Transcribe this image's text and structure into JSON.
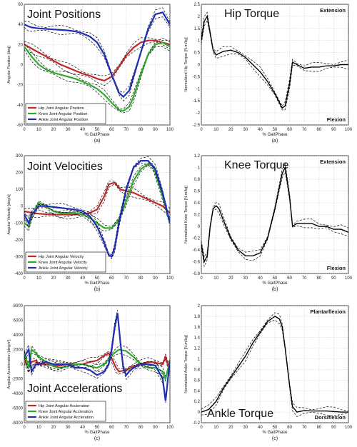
{
  "chart_data": [
    {
      "id": "pos",
      "type": "line",
      "title": "Joint Positions",
      "xlabel": "% GaitPhase",
      "ylabel": "Angular Position [deg]",
      "sublabel": "(a)",
      "xlim": [
        0,
        100
      ],
      "ylim": [
        -60,
        60
      ],
      "xticks": [
        0,
        10,
        20,
        30,
        40,
        50,
        60,
        70,
        80,
        90,
        100
      ],
      "yticks": [
        60,
        40,
        20,
        0,
        -20,
        -40,
        -60
      ],
      "grid": true,
      "legend": "bottom-left",
      "series": [
        {
          "name": "Hip Joint Angular Position",
          "color": "#c0282a",
          "x": [
            0,
            5,
            10,
            15,
            20,
            25,
            30,
            35,
            40,
            45,
            50,
            55,
            60,
            65,
            70,
            75,
            80,
            85,
            90,
            95,
            100
          ],
          "y": [
            20,
            16,
            12,
            8,
            4,
            0,
            -3,
            -6,
            -9,
            -11,
            -14,
            -16,
            -12,
            -2,
            9,
            17,
            22,
            24,
            24,
            22,
            20
          ]
        },
        {
          "name": "Knee Joint Angular Position",
          "color": "#2faa2f",
          "x": [
            0,
            5,
            10,
            15,
            20,
            25,
            30,
            35,
            40,
            45,
            50,
            55,
            60,
            65,
            68,
            72,
            75,
            80,
            85,
            90,
            95,
            100
          ],
          "y": [
            18,
            8,
            0,
            -5,
            -8,
            -10,
            -12,
            -14,
            -17,
            -20,
            -24,
            -30,
            -38,
            -45,
            -46,
            -42,
            -32,
            -10,
            10,
            20,
            22,
            18
          ]
        },
        {
          "name": "Ankle Joint Angular Position",
          "color": "#1f2fb4",
          "x": [
            0,
            3,
            5,
            10,
            15,
            20,
            25,
            30,
            35,
            40,
            45,
            50,
            55,
            60,
            65,
            68,
            72,
            75,
            80,
            85,
            90,
            95,
            100
          ],
          "y": [
            40,
            38,
            37,
            36,
            35.5,
            35,
            34.5,
            34,
            33,
            31,
            28,
            22,
            10,
            -10,
            -28,
            -32,
            -26,
            -12,
            12,
            35,
            50,
            52,
            40
          ]
        }
      ]
    },
    {
      "id": "hip",
      "type": "line",
      "title": "Hip Torque",
      "xlabel": "% GaitPhase",
      "ylabel": "Normalized Hip Torque [N.m/kg]",
      "sublabel": "(a)",
      "top_tag": "Extension",
      "bottom_tag": "Flexion",
      "xlim": [
        0,
        100
      ],
      "ylim": [
        -2.5,
        2.5
      ],
      "xticks": [
        0,
        10,
        20,
        30,
        40,
        50,
        60,
        70,
        80,
        90,
        100
      ],
      "yticks": [
        2.5,
        2,
        1.5,
        1,
        0.5,
        0,
        -0.5,
        -1,
        -1.5,
        -2,
        -2.5
      ],
      "grid": true,
      "series": [
        {
          "name": "",
          "color": "#000000",
          "x": [
            0,
            2,
            4,
            6,
            8,
            10,
            15,
            20,
            25,
            30,
            35,
            40,
            45,
            50,
            55,
            57,
            60,
            62,
            65,
            70,
            75,
            80,
            85,
            90,
            95,
            100
          ],
          "y": [
            1.0,
            1.8,
            2.0,
            1.3,
            0.6,
            0.4,
            0.55,
            0.6,
            0.5,
            0.3,
            0.0,
            -0.3,
            -0.7,
            -1.2,
            -1.8,
            -1.7,
            -0.8,
            0.1,
            0.0,
            -0.15,
            -0.1,
            -0.1,
            -0.05,
            -0.05,
            0.0,
            0.0
          ]
        }
      ]
    },
    {
      "id": "vel",
      "type": "line",
      "title": "Joint Velocities",
      "xlabel": "% GaitPhase",
      "ylabel": "Angular Velocity [deg/s]",
      "sublabel": "(b)",
      "xlim": [
        0,
        100
      ],
      "ylim": [
        -400,
        300
      ],
      "xticks": [
        0,
        10,
        20,
        30,
        40,
        50,
        60,
        70,
        80,
        90,
        100
      ],
      "yticks": [
        300,
        200,
        100,
        0,
        -100,
        -200,
        -300,
        -400
      ],
      "grid": true,
      "legend": "bottom-left",
      "series": [
        {
          "name": "Hip Joint Angular Velocity",
          "color": "#c0282a",
          "x": [
            0,
            5,
            10,
            15,
            20,
            25,
            30,
            35,
            40,
            45,
            50,
            55,
            58,
            62,
            66,
            70,
            75,
            80,
            85,
            90,
            95,
            100
          ],
          "y": [
            -30,
            -40,
            -45,
            -48,
            -50,
            -50,
            -50,
            -50,
            -48,
            -40,
            -20,
            60,
            130,
            140,
            100,
            90,
            80,
            60,
            40,
            20,
            0,
            -40
          ]
        },
        {
          "name": "Knee Joint Angular Velocity",
          "color": "#2faa2f",
          "x": [
            0,
            3,
            5,
            10,
            15,
            20,
            25,
            30,
            35,
            40,
            45,
            50,
            55,
            60,
            65,
            70,
            75,
            80,
            85,
            88,
            90,
            95,
            100
          ],
          "y": [
            -100,
            -120,
            -60,
            20,
            0,
            -30,
            -40,
            -40,
            -40,
            -50,
            -70,
            -100,
            -130,
            -130,
            -80,
            30,
            150,
            220,
            250,
            240,
            200,
            60,
            -100
          ]
        },
        {
          "name": "Ankle Joint Angular Velocity",
          "color": "#1f2fb4",
          "x": [
            0,
            3,
            5,
            10,
            15,
            20,
            25,
            30,
            35,
            40,
            45,
            50,
            55,
            58,
            60,
            62,
            65,
            70,
            75,
            80,
            85,
            90,
            95,
            100
          ],
          "y": [
            -50,
            -100,
            -50,
            0,
            0,
            -5,
            -10,
            -15,
            -20,
            -30,
            -60,
            -120,
            -220,
            -290,
            -300,
            -250,
            -100,
            100,
            230,
            270,
            270,
            220,
            80,
            -100
          ]
        }
      ]
    },
    {
      "id": "knee",
      "type": "line",
      "title": "Knee Torque",
      "xlabel": "% GaitPhase",
      "ylabel": "Normalized Knee Torque [N.m/kg]",
      "sublabel": "(b)",
      "top_tag": "Extension",
      "bottom_tag": "Flexion",
      "xlim": [
        0,
        100
      ],
      "ylim": [
        -0.8,
        1.2
      ],
      "xticks": [
        0,
        10,
        20,
        30,
        40,
        50,
        60,
        70,
        80,
        90,
        100
      ],
      "yticks": [
        1.2,
        1,
        0.8,
        0.6,
        0.4,
        0.2,
        0,
        -0.2,
        -0.4,
        -0.6,
        -0.8
      ],
      "grid": true,
      "series": [
        {
          "name": "",
          "color": "#000000",
          "x": [
            0,
            2,
            4,
            6,
            8,
            10,
            12,
            15,
            20,
            25,
            30,
            35,
            40,
            45,
            50,
            55,
            57,
            60,
            62,
            65,
            70,
            75,
            80,
            85,
            90,
            95,
            100
          ],
          "y": [
            -0.3,
            -0.6,
            -0.5,
            0.0,
            0.3,
            0.35,
            0.3,
            0.1,
            -0.2,
            -0.4,
            -0.5,
            -0.5,
            -0.45,
            -0.2,
            0.3,
            0.9,
            1.0,
            0.5,
            0.0,
            0.05,
            0.05,
            0.05,
            0.0,
            0.0,
            -0.05,
            -0.05,
            -0.1
          ]
        }
      ]
    },
    {
      "id": "acc",
      "type": "line",
      "title": "Joint Accelerations",
      "xlabel": "% GaitPhase",
      "ylabel": "Angular Acceleration [deg/s²]",
      "sublabel": "(c)",
      "xlim": [
        0,
        100
      ],
      "ylim": [
        -8000,
        8000
      ],
      "xticks": [
        0,
        10,
        20,
        30,
        40,
        50,
        60,
        70,
        80,
        90,
        100
      ],
      "yticks": [
        8000,
        6000,
        4000,
        2000,
        0,
        -2000,
        -4000,
        -6000,
        -8000
      ],
      "grid": true,
      "legend": "bottom-left",
      "series": [
        {
          "name": "Hip Joint Angular Accleration",
          "color": "#c0282a",
          "x": [
            0,
            3,
            5,
            8,
            10,
            15,
            20,
            25,
            30,
            35,
            40,
            45,
            50,
            55,
            58,
            60,
            63,
            65,
            70,
            75,
            80,
            85,
            90,
            95,
            97,
            100
          ],
          "y": [
            500,
            -500,
            300,
            500,
            0,
            0,
            -200,
            -200,
            0,
            0,
            0,
            300,
            500,
            1200,
            1500,
            800,
            -500,
            -1000,
            -800,
            -300,
            0,
            300,
            200,
            0,
            1000,
            -1000
          ]
        },
        {
          "name": "Knee Joint Angular Accleration",
          "color": "#2faa2f",
          "x": [
            0,
            3,
            5,
            8,
            10,
            15,
            20,
            25,
            30,
            35,
            40,
            45,
            50,
            55,
            60,
            65,
            70,
            75,
            80,
            85,
            90,
            95,
            97,
            100
          ],
          "y": [
            1500,
            -500,
            2000,
            1500,
            1000,
            300,
            -300,
            -500,
            -300,
            0,
            0,
            -300,
            -500,
            0,
            1200,
            2000,
            1800,
            1000,
            0,
            -500,
            -500,
            -1000,
            -2000,
            500
          ]
        },
        {
          "name": "Ankle Joint Angular Accleration",
          "color": "#1f2fb4",
          "x": [
            0,
            3,
            5,
            8,
            10,
            15,
            20,
            25,
            30,
            35,
            40,
            45,
            50,
            55,
            58,
            60,
            62,
            64,
            66,
            68,
            70,
            72,
            75,
            80,
            85,
            90,
            95,
            97,
            100
          ],
          "y": [
            1000,
            2000,
            -1000,
            0,
            0,
            300,
            0,
            0,
            0,
            -500,
            -500,
            -800,
            -1500,
            -1000,
            0,
            2000,
            5000,
            7000,
            3000,
            -500,
            -1500,
            -1000,
            -500,
            0,
            0,
            -200,
            -2000,
            -5000,
            500
          ]
        }
      ]
    },
    {
      "id": "ankle",
      "type": "line",
      "title": "Ankle Torque",
      "xlabel": "% GaitPhase",
      "ylabel": "Normalized Ankle Torque [N.m/kg]",
      "sublabel": "(c)",
      "top_tag": "Plantarflexion",
      "bottom_tag": "Dorsiflexion",
      "xlim": [
        0,
        100
      ],
      "ylim": [
        -0.2,
        2
      ],
      "xticks": [
        0,
        10,
        20,
        30,
        40,
        50,
        60,
        70,
        80,
        90,
        100
      ],
      "yticks": [
        2,
        1.8,
        1.6,
        1.4,
        1.2,
        1,
        0.8,
        0.6,
        0.4,
        0.2,
        0,
        -0.2
      ],
      "grid": true,
      "series": [
        {
          "name": "",
          "color": "#000000",
          "x": [
            0,
            5,
            10,
            15,
            20,
            25,
            30,
            35,
            40,
            45,
            50,
            53,
            55,
            57,
            60,
            62,
            65,
            70,
            75,
            80,
            85,
            90,
            95,
            100
          ],
          "y": [
            0.0,
            0.05,
            0.2,
            0.45,
            0.65,
            0.85,
            1.05,
            1.3,
            1.5,
            1.7,
            1.8,
            1.75,
            1.6,
            1.2,
            0.5,
            0.1,
            0.0,
            0.03,
            0.02,
            0.02,
            0.02,
            0.01,
            0.0,
            0.0
          ]
        }
      ]
    }
  ]
}
